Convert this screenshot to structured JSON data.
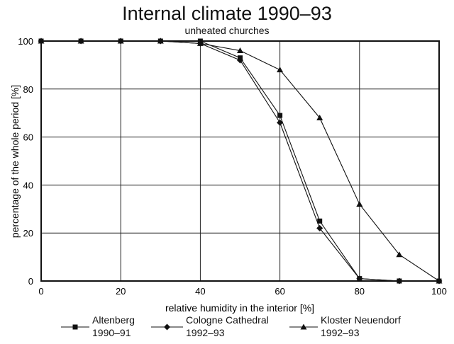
{
  "chart_data": {
    "type": "line",
    "title": "Internal climate 1990–93",
    "subtitle": "unheated churches",
    "xlabel": "relative humidity in the interior [%]",
    "ylabel": "percentage of the whole period [%]",
    "xlim": [
      0,
      100
    ],
    "ylim": [
      0,
      100
    ],
    "xticks": [
      0,
      20,
      40,
      60,
      80,
      100
    ],
    "yticks": [
      0,
      20,
      40,
      60,
      80,
      100
    ],
    "grid": true,
    "legend_position": "bottom",
    "series": [
      {
        "name": "Altenberg",
        "period": "1990–91",
        "marker": "square",
        "x": [
          0,
          10,
          20,
          30,
          40,
          50,
          60,
          70,
          80,
          90,
          100
        ],
        "y": [
          100,
          100,
          100,
          100,
          100,
          93,
          69,
          25,
          1,
          0,
          0
        ]
      },
      {
        "name": "Cologne Cathedral",
        "period": "1992–93",
        "marker": "diamond",
        "x": [
          0,
          10,
          20,
          30,
          40,
          50,
          60,
          70,
          80,
          90,
          100
        ],
        "y": [
          100,
          100,
          100,
          100,
          99,
          92,
          66,
          22,
          1,
          0,
          0
        ]
      },
      {
        "name": "Kloster Neuendorf",
        "period": "1992–93",
        "marker": "triangle",
        "x": [
          0,
          10,
          20,
          30,
          40,
          50,
          60,
          70,
          80,
          90,
          100
        ],
        "y": [
          100,
          100,
          100,
          100,
          99,
          96,
          88,
          68,
          32,
          11,
          0
        ]
      }
    ]
  }
}
